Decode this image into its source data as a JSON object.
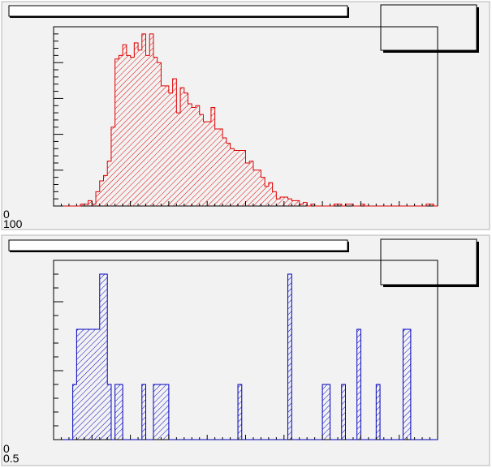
{
  "chart_data": [
    {
      "type": "bar",
      "histogram": true,
      "title": "",
      "xlabel": "",
      "ylabel": "",
      "line_color": "#e00000",
      "fill_color": "#e00000",
      "fill_style": "hatched",
      "stats_box": true,
      "bin_count": 100,
      "ylim": [
        0,
        100
      ],
      "y_tick_labels": [
        "0",
        "100"
      ],
      "values": [
        0,
        0,
        0,
        0,
        0,
        0,
        0,
        1,
        1,
        3,
        1,
        8,
        14,
        17,
        25,
        44,
        82,
        84,
        90,
        84,
        83,
        91,
        87,
        96,
        84,
        96,
        83,
        80,
        67,
        67,
        63,
        71,
        52,
        66,
        63,
        57,
        55,
        56,
        51,
        47,
        47,
        55,
        43,
        43,
        38,
        35,
        32,
        31,
        31,
        31,
        24,
        25,
        20,
        20,
        16,
        11,
        13,
        8,
        4,
        5,
        5,
        4,
        3,
        3,
        1,
        2,
        0,
        1,
        0,
        0,
        0,
        0,
        0,
        1,
        1,
        0,
        1,
        1,
        0,
        0,
        1,
        0,
        0,
        0,
        0,
        0,
        0,
        0,
        0,
        0,
        0,
        0,
        0,
        0,
        0,
        0,
        0,
        1,
        1,
        0
      ]
    },
    {
      "type": "bar",
      "histogram": true,
      "title": "",
      "xlabel": "",
      "ylabel": "",
      "line_color": "#0000c0",
      "fill_color": "#0000c0",
      "fill_style": "hatched",
      "stats_box": true,
      "bin_count": 100,
      "ylim": [
        0,
        6.5
      ],
      "y_tick_labels": [
        "0",
        "0.5"
      ],
      "values": [
        0,
        0,
        0,
        0,
        0,
        2,
        4,
        4,
        4,
        4,
        4,
        4,
        6,
        6,
        2,
        0,
        2,
        2,
        0,
        0,
        0,
        0,
        0,
        2,
        0,
        0,
        2,
        2,
        2,
        2,
        0,
        0,
        0,
        0,
        0,
        0,
        0,
        0,
        0,
        0,
        0,
        0,
        0,
        0,
        0,
        0,
        0,
        0,
        2,
        0,
        0,
        0,
        0,
        0,
        0,
        0,
        0,
        0,
        0,
        0,
        0,
        6,
        0,
        0,
        0,
        0,
        0,
        0,
        0,
        0,
        2,
        2,
        0,
        0,
        0,
        2,
        0,
        0,
        0,
        4,
        0,
        0,
        0,
        0,
        2,
        0,
        0,
        0,
        0,
        0,
        0,
        4,
        4,
        0,
        0,
        0,
        0,
        0,
        0,
        0
      ]
    }
  ]
}
